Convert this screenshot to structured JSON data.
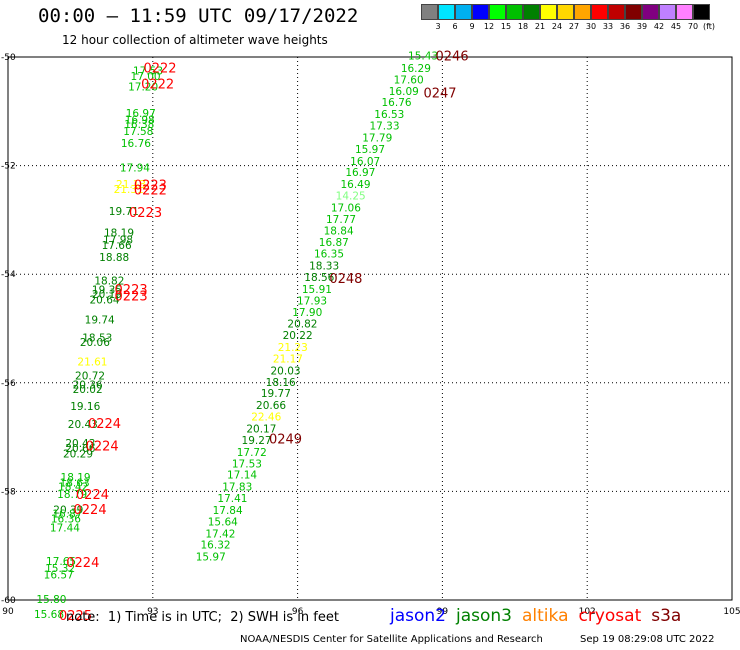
{
  "header": {
    "title": "00:00 – 11:59 UTC 09/17/2022",
    "subtitle": "12 hour collection of altimeter wave heights"
  },
  "colorbar": {
    "labels": [
      "3",
      "6",
      "9",
      "12",
      "15",
      "18",
      "21",
      "24",
      "27",
      "30",
      "33",
      "36",
      "39",
      "42",
      "45",
      "70"
    ],
    "unit": "(ft)",
    "colors": [
      "#808080",
      "#00e5ff",
      "#00b0f0",
      "#0000ff",
      "#00ff00",
      "#00c000",
      "#008000",
      "#ffff00",
      "#ffd700",
      "#ffa500",
      "#ff0000",
      "#c00000",
      "#800000",
      "#800080",
      "#c080ff",
      "#ff80ff",
      "#000000"
    ]
  },
  "footer": {
    "note": "note:  1) Time is in UTC;  2) SWH is in feet",
    "legend": [
      {
        "name": "jason2",
        "color": "#0000ff"
      },
      {
        "name": "jason3",
        "color": "#008000"
      },
      {
        "name": "altika",
        "color": "#ff8000"
      },
      {
        "name": "cryosat",
        "color": "#ff0000"
      },
      {
        "name": "s3a",
        "color": "#800000"
      }
    ],
    "credit": "NOAA/NESDIS Center for Satellite Applications and Research",
    "stamp": "Sep 19 08:29:08 UTC 2022"
  },
  "chart_data": {
    "type": "scatter",
    "title": "00:00 – 11:59 UTC 09/17/2022",
    "subtitle": "12 hour collection of altimeter wave heights",
    "xlim": [
      90,
      105
    ],
    "ylim": [
      -60,
      -50
    ],
    "xticks": [
      90,
      93,
      96,
      99,
      102,
      105
    ],
    "yticks": [
      -50,
      -52,
      -54,
      -56,
      -58,
      -60
    ],
    "grid": true,
    "points": [
      {
        "x": 92.9,
        "y": -50.27,
        "v": "17.53",
        "c": "#00c000"
      },
      {
        "x": 92.85,
        "y": -50.37,
        "v": "17.00",
        "c": "#00c000"
      },
      {
        "x": 92.8,
        "y": -50.56,
        "v": "17.20",
        "c": "#00c000"
      },
      {
        "x": 92.75,
        "y": -51.05,
        "v": "16.97",
        "c": "#00c000"
      },
      {
        "x": 92.73,
        "y": -51.17,
        "v": "16.98",
        "c": "#00c000"
      },
      {
        "x": 92.72,
        "y": -51.25,
        "v": "16.38",
        "c": "#00c000"
      },
      {
        "x": 92.7,
        "y": -51.38,
        "v": "17.58",
        "c": "#00c000"
      },
      {
        "x": 92.65,
        "y": -51.6,
        "v": "16.76",
        "c": "#00c000"
      },
      {
        "x": 92.63,
        "y": -52.05,
        "v": "17.94",
        "c": "#00c000"
      },
      {
        "x": 92.55,
        "y": -52.36,
        "v": "21.13",
        "c": "#ffff00"
      },
      {
        "x": 92.5,
        "y": -52.45,
        "v": "21.31",
        "c": "#ffff00"
      },
      {
        "x": 92.4,
        "y": -52.85,
        "v": "19.71",
        "c": "#008000"
      },
      {
        "x": 92.3,
        "y": -53.25,
        "v": "18.19",
        "c": "#008000"
      },
      {
        "x": 92.28,
        "y": -53.38,
        "v": "17.98",
        "c": "#008000"
      },
      {
        "x": 92.25,
        "y": -53.48,
        "v": "17.66",
        "c": "#008000"
      },
      {
        "x": 92.2,
        "y": -53.7,
        "v": "18.88",
        "c": "#008000"
      },
      {
        "x": 92.1,
        "y": -54.13,
        "v": "18.82",
        "c": "#008000"
      },
      {
        "x": 92.05,
        "y": -54.3,
        "v": "19.35",
        "c": "#008000"
      },
      {
        "x": 92.05,
        "y": -54.38,
        "v": "20.19",
        "c": "#008000"
      },
      {
        "x": 92.0,
        "y": -54.48,
        "v": "20.64",
        "c": "#008000"
      },
      {
        "x": 91.9,
        "y": -54.85,
        "v": "19.74",
        "c": "#008000"
      },
      {
        "x": 91.85,
        "y": -55.18,
        "v": "18.53",
        "c": "#008000"
      },
      {
        "x": 91.8,
        "y": -55.27,
        "v": "20.06",
        "c": "#008000"
      },
      {
        "x": 91.75,
        "y": -55.63,
        "v": "21.61",
        "c": "#ffff00"
      },
      {
        "x": 91.7,
        "y": -55.88,
        "v": "20.72",
        "c": "#008000"
      },
      {
        "x": 91.65,
        "y": -56.05,
        "v": "20.36",
        "c": "#008000"
      },
      {
        "x": 91.65,
        "y": -56.13,
        "v": "20.02",
        "c": "#008000"
      },
      {
        "x": 91.6,
        "y": -56.45,
        "v": "19.16",
        "c": "#008000"
      },
      {
        "x": 91.55,
        "y": -56.78,
        "v": "20.43",
        "c": "#008000"
      },
      {
        "x": 91.5,
        "y": -57.13,
        "v": "20.43",
        "c": "#008000"
      },
      {
        "x": 91.5,
        "y": -57.22,
        "v": "20.66",
        "c": "#008000"
      },
      {
        "x": 91.45,
        "y": -57.32,
        "v": "20.29",
        "c": "#008000"
      },
      {
        "x": 91.4,
        "y": -57.75,
        "v": "18.19",
        "c": "#00c000"
      },
      {
        "x": 91.38,
        "y": -57.85,
        "v": "18.63",
        "c": "#00c000"
      },
      {
        "x": 91.35,
        "y": -57.93,
        "v": "18.42",
        "c": "#00c000"
      },
      {
        "x": 91.33,
        "y": -58.07,
        "v": "18.79",
        "c": "#00c000"
      },
      {
        "x": 91.25,
        "y": -58.35,
        "v": "20.39",
        "c": "#008000"
      },
      {
        "x": 91.23,
        "y": -58.43,
        "v": "16.87",
        "c": "#00c000"
      },
      {
        "x": 91.2,
        "y": -58.52,
        "v": "16.36",
        "c": "#00c000"
      },
      {
        "x": 91.18,
        "y": -58.68,
        "v": "17.44",
        "c": "#00c000"
      },
      {
        "x": 91.1,
        "y": -59.3,
        "v": "17.65",
        "c": "#00c000"
      },
      {
        "x": 91.08,
        "y": -59.43,
        "v": "15.32",
        "c": "#00c000"
      },
      {
        "x": 91.05,
        "y": -59.55,
        "v": "16.57",
        "c": "#00c000"
      },
      {
        "x": 90.9,
        "y": -60.0,
        "v": "15.80",
        "c": "#00c000"
      },
      {
        "x": 90.85,
        "y": -60.28,
        "v": "15.68",
        "c": "#00c000"
      },
      {
        "x": 98.6,
        "y": -49.99,
        "v": "15.43",
        "c": "#00c000"
      },
      {
        "x": 98.45,
        "y": -50.22,
        "v": "16.29",
        "c": "#00c000"
      },
      {
        "x": 98.3,
        "y": -50.43,
        "v": "17.60",
        "c": "#00c000"
      },
      {
        "x": 98.2,
        "y": -50.64,
        "v": "16.09",
        "c": "#00c000"
      },
      {
        "x": 98.05,
        "y": -50.85,
        "v": "16.76",
        "c": "#00c000"
      },
      {
        "x": 97.9,
        "y": -51.07,
        "v": "16.53",
        "c": "#00c000"
      },
      {
        "x": 97.8,
        "y": -51.28,
        "v": "17.33",
        "c": "#00c000"
      },
      {
        "x": 97.65,
        "y": -51.5,
        "v": "17.79",
        "c": "#00c000"
      },
      {
        "x": 97.5,
        "y": -51.71,
        "v": "15.97",
        "c": "#00c000"
      },
      {
        "x": 97.4,
        "y": -51.93,
        "v": "16.07",
        "c": "#00c000"
      },
      {
        "x": 97.3,
        "y": -52.14,
        "v": "16.97",
        "c": "#00c000"
      },
      {
        "x": 97.2,
        "y": -52.36,
        "v": "16.49",
        "c": "#00c000"
      },
      {
        "x": 97.1,
        "y": -52.57,
        "v": "14.25",
        "c": "#80ff80"
      },
      {
        "x": 97.0,
        "y": -52.79,
        "v": "17.06",
        "c": "#00c000"
      },
      {
        "x": 96.9,
        "y": -53.0,
        "v": "17.77",
        "c": "#00c000"
      },
      {
        "x": 96.85,
        "y": -53.21,
        "v": "18.84",
        "c": "#00c000"
      },
      {
        "x": 96.75,
        "y": -53.43,
        "v": "16.87",
        "c": "#00c000"
      },
      {
        "x": 96.65,
        "y": -53.64,
        "v": "16.35",
        "c": "#00c000"
      },
      {
        "x": 96.55,
        "y": -53.86,
        "v": "18.33",
        "c": "#008000"
      },
      {
        "x": 96.45,
        "y": -54.07,
        "v": "18.56",
        "c": "#008000"
      },
      {
        "x": 96.4,
        "y": -54.29,
        "v": "15.91",
        "c": "#00c000"
      },
      {
        "x": 96.3,
        "y": -54.5,
        "v": "17.93",
        "c": "#00c000"
      },
      {
        "x": 96.2,
        "y": -54.71,
        "v": "17.90",
        "c": "#00c000"
      },
      {
        "x": 96.1,
        "y": -54.93,
        "v": "20.82",
        "c": "#008000"
      },
      {
        "x": 96.0,
        "y": -55.14,
        "v": "20.22",
        "c": "#008000"
      },
      {
        "x": 95.9,
        "y": -55.36,
        "v": "21.23",
        "c": "#ffff00"
      },
      {
        "x": 95.8,
        "y": -55.57,
        "v": "21.17",
        "c": "#ffff00"
      },
      {
        "x": 95.75,
        "y": -55.79,
        "v": "20.03",
        "c": "#008000"
      },
      {
        "x": 95.65,
        "y": -56.0,
        "v": "18.16",
        "c": "#008000"
      },
      {
        "x": 95.55,
        "y": -56.21,
        "v": "19.77",
        "c": "#008000"
      },
      {
        "x": 95.45,
        "y": -56.43,
        "v": "20.66",
        "c": "#008000"
      },
      {
        "x": 95.35,
        "y": -56.64,
        "v": "22.46",
        "c": "#ffff00"
      },
      {
        "x": 95.25,
        "y": -56.86,
        "v": "20.17",
        "c": "#008000"
      },
      {
        "x": 95.15,
        "y": -57.07,
        "v": "19.27",
        "c": "#008000"
      },
      {
        "x": 95.05,
        "y": -57.29,
        "v": "17.72",
        "c": "#00c000"
      },
      {
        "x": 94.95,
        "y": -57.5,
        "v": "17.53",
        "c": "#00c000"
      },
      {
        "x": 94.85,
        "y": -57.71,
        "v": "17.14",
        "c": "#00c000"
      },
      {
        "x": 94.75,
        "y": -57.93,
        "v": "17.83",
        "c": "#00c000"
      },
      {
        "x": 94.65,
        "y": -58.14,
        "v": "17.41",
        "c": "#00c000"
      },
      {
        "x": 94.55,
        "y": -58.36,
        "v": "17.84",
        "c": "#00c000"
      },
      {
        "x": 94.45,
        "y": -58.57,
        "v": "15.64",
        "c": "#00c000"
      },
      {
        "x": 94.4,
        "y": -58.79,
        "v": "17.42",
        "c": "#00c000"
      },
      {
        "x": 94.3,
        "y": -59.0,
        "v": "16.32",
        "c": "#00c000"
      },
      {
        "x": 94.2,
        "y": -59.22,
        "v": "15.97",
        "c": "#00c000"
      }
    ],
    "pass_labels": [
      {
        "x": 93.15,
        "y": -50.22,
        "t": "0222",
        "c": "#ff0000"
      },
      {
        "x": 93.1,
        "y": -50.52,
        "t": "0222",
        "c": "#ff0000"
      },
      {
        "x": 92.95,
        "y": -52.38,
        "t": "0223",
        "c": "#ff0000"
      },
      {
        "x": 92.95,
        "y": -52.47,
        "t": "0222",
        "c": "#ff0000"
      },
      {
        "x": 92.85,
        "y": -52.88,
        "t": "0223",
        "c": "#ff0000"
      },
      {
        "x": 92.55,
        "y": -54.3,
        "t": "0223",
        "c": "#ff0000"
      },
      {
        "x": 92.55,
        "y": -54.42,
        "t": "0223",
        "c": "#ff0000"
      },
      {
        "x": 92.0,
        "y": -56.77,
        "t": "0224",
        "c": "#ff0000"
      },
      {
        "x": 91.95,
        "y": -57.18,
        "t": "0224",
        "c": "#ff0000"
      },
      {
        "x": 91.75,
        "y": -58.08,
        "t": "0224",
        "c": "#ff0000"
      },
      {
        "x": 91.7,
        "y": -58.35,
        "t": "0224",
        "c": "#ff0000"
      },
      {
        "x": 91.55,
        "y": -59.33,
        "t": "0224",
        "c": "#ff0000"
      },
      {
        "x": 91.4,
        "y": -60.3,
        "t": "0225",
        "c": "#ff0000"
      },
      {
        "x": 99.2,
        "y": -50.0,
        "t": "0246",
        "c": "#800000"
      },
      {
        "x": 98.95,
        "y": -50.68,
        "t": "0247",
        "c": "#800000"
      },
      {
        "x": 97.0,
        "y": -54.1,
        "t": "0248",
        "c": "#800000"
      },
      {
        "x": 95.75,
        "y": -57.05,
        "t": "0249",
        "c": "#800000"
      }
    ]
  }
}
